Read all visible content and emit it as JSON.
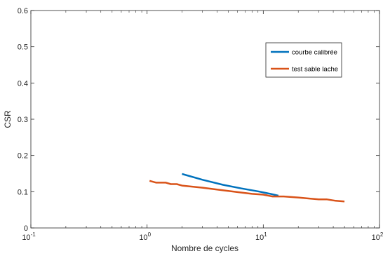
{
  "chart_data": {
    "type": "line",
    "xscale": "log",
    "xlabel": "Nombre de cycles",
    "ylabel": "CSR",
    "xlim": [
      0.1,
      100
    ],
    "ylim": [
      0,
      0.6
    ],
    "x_ticks": [
      {
        "value": 0.1,
        "base": "10",
        "exp": "-1"
      },
      {
        "value": 1,
        "base": "10",
        "exp": "0"
      },
      {
        "value": 10,
        "base": "10",
        "exp": "1"
      },
      {
        "value": 100,
        "base": "10",
        "exp": "2"
      }
    ],
    "y_ticks": [
      {
        "value": 0,
        "label": "0"
      },
      {
        "value": 0.1,
        "label": "0.1"
      },
      {
        "value": 0.2,
        "label": "0.2"
      },
      {
        "value": 0.3,
        "label": "0.3"
      },
      {
        "value": 0.4,
        "label": "0.4"
      },
      {
        "value": 0.5,
        "label": "0.5"
      },
      {
        "value": 0.6,
        "label": "0.6"
      }
    ],
    "grid": false,
    "legend_position": "top-right",
    "series": [
      {
        "name": "courbe calibrée",
        "color": "#0072BD",
        "points": [
          [
            2.0,
            0.149
          ],
          [
            3.0,
            0.133
          ],
          [
            4.5,
            0.119
          ],
          [
            6.5,
            0.109
          ],
          [
            9.0,
            0.101
          ],
          [
            11.5,
            0.094
          ],
          [
            13.5,
            0.089
          ]
        ]
      },
      {
        "name": "test sable lache",
        "color": "#D95319",
        "points": [
          [
            1.05,
            0.13
          ],
          [
            1.2,
            0.125
          ],
          [
            1.45,
            0.125
          ],
          [
            1.6,
            0.121
          ],
          [
            1.8,
            0.121
          ],
          [
            2.0,
            0.117
          ],
          [
            3.0,
            0.111
          ],
          [
            4.0,
            0.106
          ],
          [
            6.0,
            0.099
          ],
          [
            8.0,
            0.094
          ],
          [
            10.0,
            0.092
          ],
          [
            12.0,
            0.087
          ],
          [
            15.0,
            0.087
          ],
          [
            20.0,
            0.084
          ],
          [
            25.0,
            0.081
          ],
          [
            30.0,
            0.079
          ],
          [
            35.0,
            0.079
          ],
          [
            42.0,
            0.075
          ],
          [
            50.0,
            0.073
          ]
        ]
      }
    ]
  }
}
